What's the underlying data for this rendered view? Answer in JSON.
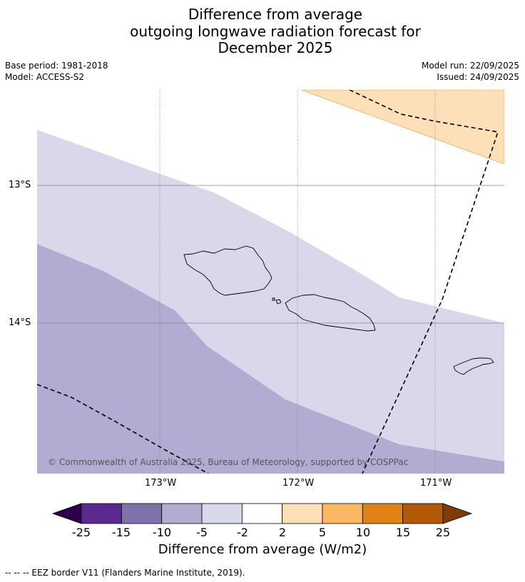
{
  "title": {
    "line1": "Difference from average",
    "line2": "outgoing longwave radiation forecast for",
    "line3": "December 2025"
  },
  "meta": {
    "base_period": "Base period: 1981-2018",
    "model": "Model: ACCESS-S2",
    "model_run": "Model run: 22/09/2025",
    "issued": "Issued: 24/09/2025"
  },
  "map": {
    "lat_labels": [
      "13°S",
      "14°S"
    ],
    "lon_labels": [
      "173°W",
      "172°W",
      "171°W"
    ],
    "copyright": "© Commonwealth of Australia 2025, Bureau of Meteorology, supported by COSPPac",
    "region_colors": {
      "minus_10_to_minus_5": "#b2acd3",
      "minus_5_to_minus_2": "#d8d8ea",
      "plus_2_to_plus_5": "#fde0b7"
    }
  },
  "colorbar": {
    "labels": [
      "-25",
      "-15",
      "-10",
      "-5",
      "-2",
      "2",
      "5",
      "10",
      "15",
      "25"
    ],
    "colors": [
      "#5b2a8f",
      "#8073ac",
      "#b2abd2",
      "#d8daeb",
      "#ffffff",
      "#fee0b6",
      "#fdb863",
      "#e08214",
      "#b35806"
    ],
    "under_color": "#2d004b",
    "over_color": "#7f3b08",
    "title": "Difference from average (W/m2)"
  },
  "footer": "-- -- -- EEZ border V11 (Flanders Marine Institute, 2019)."
}
